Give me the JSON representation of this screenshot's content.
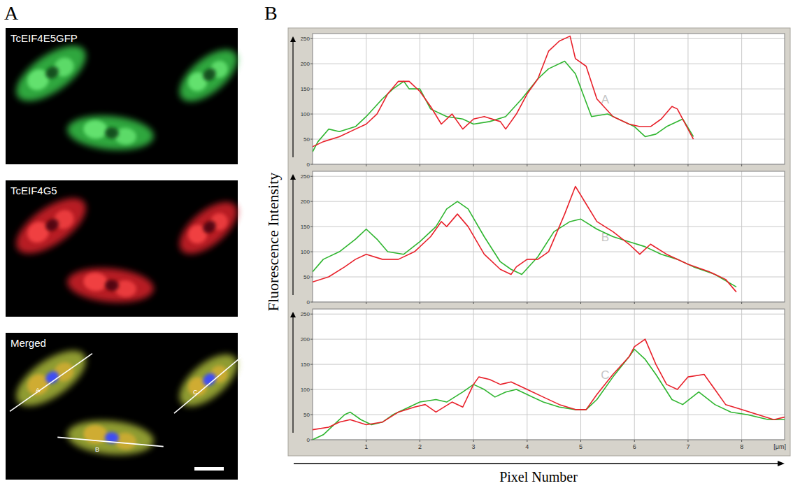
{
  "panels": [
    {
      "letter": "A",
      "image_labels": [
        "TcEIF4E5GFP",
        "TcEIF4G5",
        "Merged"
      ],
      "cell_labels": [
        "A",
        "B",
        "C"
      ]
    },
    {
      "letter": "B"
    }
  ],
  "axes": {
    "y_label": "Fluorescence Intensity",
    "x_label": "Pixel Number",
    "x_unit": "[μm]"
  },
  "chart_data": [
    {
      "type": "line",
      "title": "A",
      "xlim": [
        0,
        8.8
      ],
      "ylim": [
        0,
        260
      ],
      "xticks": [
        1,
        2,
        3,
        4,
        5,
        6,
        7,
        8
      ],
      "yticks": [
        0,
        50,
        100,
        150,
        200,
        250
      ],
      "grid": true,
      "tick_labels": "y",
      "series": [
        {
          "color": "#2fb52f",
          "x": [
            0,
            0.1,
            0.3,
            0.5,
            0.8,
            1.0,
            1.3,
            1.5,
            1.7,
            1.8,
            2.0,
            2.2,
            2.5,
            2.8,
            3.0,
            3.3,
            3.6,
            3.9,
            4.2,
            4.4,
            4.7,
            4.9,
            5.2,
            5.5,
            5.8,
            6.0,
            6.2,
            6.4,
            6.6,
            6.9,
            7.1
          ],
          "values": [
            25,
            45,
            70,
            65,
            75,
            95,
            130,
            150,
            165,
            150,
            150,
            110,
            95,
            90,
            80,
            85,
            95,
            130,
            170,
            190,
            205,
            180,
            95,
            100,
            85,
            75,
            55,
            60,
            75,
            90,
            55
          ]
        },
        {
          "color": "#e8202a",
          "x": [
            0,
            0.2,
            0.5,
            0.8,
            1.0,
            1.2,
            1.4,
            1.6,
            1.8,
            2.0,
            2.2,
            2.4,
            2.6,
            2.8,
            3.0,
            3.2,
            3.5,
            3.6,
            3.8,
            4.0,
            4.2,
            4.4,
            4.6,
            4.8,
            4.9,
            5.1,
            5.3,
            5.6,
            5.9,
            6.1,
            6.3,
            6.5,
            6.7,
            6.8,
            7.1
          ],
          "values": [
            35,
            45,
            55,
            70,
            80,
            100,
            140,
            165,
            165,
            145,
            115,
            80,
            100,
            70,
            90,
            95,
            85,
            70,
            100,
            140,
            170,
            225,
            245,
            255,
            210,
            195,
            130,
            95,
            80,
            75,
            75,
            90,
            115,
            110,
            50
          ]
        }
      ]
    },
    {
      "type": "line",
      "title": "B",
      "xlim": [
        0,
        8.8
      ],
      "ylim": [
        0,
        260
      ],
      "xticks": [
        1,
        2,
        3,
        4,
        5,
        6,
        7,
        8
      ],
      "yticks": [
        0,
        50,
        100,
        150,
        200,
        250
      ],
      "grid": true,
      "tick_labels": "y",
      "series": [
        {
          "color": "#2fb52f",
          "x": [
            0,
            0.2,
            0.5,
            0.8,
            1.0,
            1.2,
            1.4,
            1.7,
            2.0,
            2.3,
            2.5,
            2.7,
            2.9,
            3.2,
            3.5,
            3.7,
            3.9,
            4.2,
            4.5,
            4.8,
            5.0,
            5.3,
            5.6,
            5.9,
            6.2,
            6.5,
            6.8,
            7.1,
            7.5,
            7.9
          ],
          "values": [
            60,
            85,
            100,
            125,
            145,
            125,
            100,
            95,
            120,
            150,
            185,
            200,
            185,
            130,
            80,
            65,
            55,
            90,
            140,
            160,
            165,
            145,
            130,
            120,
            110,
            95,
            85,
            70,
            55,
            30
          ]
        },
        {
          "color": "#e8202a",
          "x": [
            0,
            0.3,
            0.6,
            0.8,
            1.0,
            1.3,
            1.6,
            1.9,
            2.2,
            2.4,
            2.5,
            2.7,
            2.9,
            3.2,
            3.5,
            3.7,
            3.8,
            4.0,
            4.2,
            4.4,
            4.7,
            4.9,
            5.1,
            5.3,
            5.6,
            5.9,
            6.1,
            6.3,
            6.6,
            7.0,
            7.4,
            7.7,
            7.9
          ],
          "values": [
            40,
            50,
            70,
            85,
            95,
            85,
            85,
            100,
            130,
            160,
            150,
            175,
            150,
            95,
            65,
            55,
            70,
            85,
            85,
            100,
            175,
            230,
            195,
            160,
            140,
            115,
            95,
            115,
            95,
            75,
            60,
            45,
            20
          ]
        }
      ]
    },
    {
      "type": "line",
      "title": "C",
      "xlim": [
        0,
        8.8
      ],
      "ylim": [
        0,
        260
      ],
      "xticks": [
        1,
        2,
        3,
        4,
        5,
        6,
        7,
        8
      ],
      "yticks": [
        0,
        50,
        100,
        150,
        200,
        250
      ],
      "grid": true,
      "tick_labels": true,
      "series": [
        {
          "color": "#2fb52f",
          "x": [
            0,
            0.2,
            0.4,
            0.6,
            0.7,
            0.9,
            1.1,
            1.3,
            1.5,
            1.8,
            2.0,
            2.3,
            2.5,
            2.8,
            3.0,
            3.2,
            3.4,
            3.6,
            3.8,
            4.0,
            4.3,
            4.6,
            4.9,
            5.1,
            5.3,
            5.6,
            5.9,
            6.0,
            6.2,
            6.4,
            6.7,
            6.9,
            7.2,
            7.5,
            7.8,
            8.1,
            8.5,
            8.8
          ],
          "values": [
            0,
            10,
            30,
            50,
            55,
            40,
            30,
            35,
            50,
            65,
            75,
            80,
            75,
            95,
            110,
            100,
            85,
            95,
            100,
            90,
            75,
            65,
            60,
            60,
            80,
            125,
            165,
            180,
            160,
            130,
            80,
            70,
            95,
            70,
            55,
            50,
            40,
            40
          ]
        },
        {
          "color": "#e8202a",
          "x": [
            0,
            0.3,
            0.5,
            0.7,
            1.0,
            1.3,
            1.6,
            1.9,
            2.1,
            2.3,
            2.6,
            2.8,
            3.0,
            3.1,
            3.3,
            3.5,
            3.7,
            4.0,
            4.3,
            4.6,
            4.9,
            5.1,
            5.3,
            5.6,
            5.9,
            6.0,
            6.2,
            6.4,
            6.6,
            6.8,
            7.0,
            7.3,
            7.5,
            7.7,
            8.0,
            8.3,
            8.6,
            8.8
          ],
          "values": [
            20,
            25,
            35,
            40,
            30,
            35,
            55,
            65,
            70,
            55,
            75,
            65,
            110,
            125,
            120,
            110,
            115,
            100,
            85,
            70,
            60,
            60,
            90,
            130,
            165,
            185,
            200,
            150,
            110,
            100,
            125,
            130,
            100,
            70,
            60,
            50,
            40,
            45
          ]
        }
      ]
    }
  ]
}
